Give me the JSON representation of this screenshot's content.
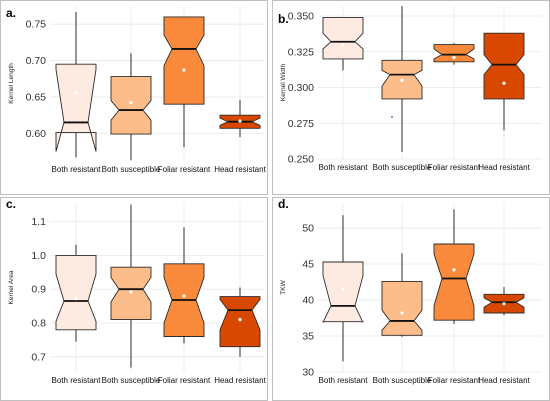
{
  "colors": {
    "fills": [
      "#fdebe1",
      "#fdbd8a",
      "#f98a3c",
      "#d94801"
    ],
    "border": "#2b2b2b",
    "median": "#111111",
    "mean_point": "#ffffff",
    "grid": "#e8e8e8"
  },
  "chart_data": [
    {
      "panel_label": "a.",
      "type": "box",
      "ylabel": "Kernel Length",
      "ylim": [
        0.562,
        0.775
      ],
      "yticks": [
        0.6,
        0.65,
        0.7,
        0.75
      ],
      "ytick_labels": [
        "0.60",
        "0.65",
        "0.70",
        "0.75"
      ],
      "grid": true,
      "categories": [
        "Both resistant",
        "Both susceptible",
        "Foliar resistant",
        "Head resistant"
      ],
      "boxes": [
        {
          "min": 0.567,
          "q1": 0.601,
          "median": 0.615,
          "q3": 0.695,
          "max": 0.767,
          "notch_low": 0.575,
          "notch_high": 0.688,
          "mean": 0.656
        },
        {
          "min": 0.563,
          "q1": 0.599,
          "median": 0.632,
          "q3": 0.678,
          "max": 0.71,
          "notch_low": 0.618,
          "notch_high": 0.645,
          "mean": 0.642
        },
        {
          "min": 0.581,
          "q1": 0.64,
          "median": 0.716,
          "q3": 0.76,
          "max": 0.76,
          "notch_low": 0.693,
          "notch_high": 0.735,
          "mean": 0.687
        },
        {
          "min": 0.595,
          "q1": 0.607,
          "median": 0.616,
          "q3": 0.625,
          "max": 0.646,
          "notch_low": 0.611,
          "notch_high": 0.621,
          "mean": 0.617
        }
      ]
    },
    {
      "panel_label": "b.",
      "type": "box",
      "ylabel": "Kernel Width",
      "ylim": [
        0.25,
        0.357
      ],
      "yticks": [
        0.25,
        0.275,
        0.3,
        0.325,
        0.35
      ],
      "ytick_labels": [
        "0.250",
        "0.275",
        "0.300",
        "0.325",
        "0.350"
      ],
      "grid": true,
      "categories": [
        "Both resistant",
        "Both susceptible",
        "Foliar resistant",
        "Head resistant"
      ],
      "boxes": [
        {
          "min": 0.312,
          "q1": 0.32,
          "median": 0.332,
          "q3": 0.349,
          "max": 0.349,
          "notch_low": 0.327,
          "notch_high": 0.338,
          "mean": 0.33
        },
        {
          "min": 0.255,
          "q1": 0.292,
          "median": 0.309,
          "q3": 0.319,
          "max": 0.357,
          "notch_low": 0.301,
          "notch_high": 0.312,
          "mean": 0.305
        },
        {
          "min": 0.316,
          "q1": 0.318,
          "median": 0.323,
          "q3": 0.33,
          "max": 0.331,
          "notch_low": 0.32,
          "notch_high": 0.327,
          "mean": 0.321
        },
        {
          "min": 0.27,
          "q1": 0.292,
          "median": 0.316,
          "q3": 0.338,
          "max": 0.338,
          "notch_low": 0.309,
          "notch_high": 0.323,
          "mean": 0.303
        }
      ]
    },
    {
      "panel_label": "c.",
      "type": "box",
      "ylabel": "Kernel Area",
      "ylim": [
        0.655,
        1.155
      ],
      "yticks": [
        0.7,
        0.8,
        0.9,
        1.0,
        1.1
      ],
      "ytick_labels": [
        "0.7",
        "0.8",
        "0.9",
        "1.0",
        "1.1"
      ],
      "grid": true,
      "categories": [
        "Both resistant",
        "Both susceptible",
        "Foliar resistant",
        "Head resistant"
      ],
      "boxes": [
        {
          "min": 0.745,
          "q1": 0.78,
          "median": 0.865,
          "q3": 1.0,
          "max": 1.032,
          "notch_low": 0.805,
          "notch_high": 0.945,
          "mean": 0.872
        },
        {
          "min": 0.668,
          "q1": 0.81,
          "median": 0.9,
          "q3": 0.965,
          "max": 1.15,
          "notch_low": 0.862,
          "notch_high": 0.935,
          "mean": 0.892
        },
        {
          "min": 0.74,
          "q1": 0.76,
          "median": 0.868,
          "q3": 0.975,
          "max": 1.083,
          "notch_low": 0.8,
          "notch_high": 0.935,
          "mean": 0.88
        },
        {
          "min": 0.7,
          "q1": 0.73,
          "median": 0.838,
          "q3": 0.878,
          "max": 0.905,
          "notch_low": 0.78,
          "notch_high": 0.87,
          "mean": 0.81
        }
      ]
    },
    {
      "panel_label": "d.",
      "type": "box",
      "ylabel": "TKW",
      "ylim": [
        30,
        53.5
      ],
      "yticks": [
        30,
        35,
        40,
        45,
        50
      ],
      "ytick_labels": [
        "30",
        "35",
        "40",
        "45",
        "50"
      ],
      "grid": true,
      "categories": [
        "Both resistant",
        "Both susceptible",
        "Foliar resistant",
        "Head resistant"
      ],
      "boxes": [
        {
          "min": 31.5,
          "q1": 37.0,
          "median": 39.2,
          "q3": 45.3,
          "max": 51.8,
          "notch_low": 36.9,
          "notch_high": 43.4,
          "mean": 41.5
        },
        {
          "min": 34.9,
          "q1": 35.1,
          "median": 37.1,
          "q3": 42.6,
          "max": 46.5,
          "notch_low": 35.8,
          "notch_high": 38.6,
          "mean": 38.2
        },
        {
          "min": 36.7,
          "q1": 37.2,
          "median": 43.0,
          "q3": 47.8,
          "max": 52.6,
          "notch_low": 39.2,
          "notch_high": 46.4,
          "mean": 44.2
        },
        {
          "min": 37.9,
          "q1": 38.2,
          "median": 39.7,
          "q3": 40.8,
          "max": 41.8,
          "notch_low": 39.0,
          "notch_high": 40.3,
          "mean": 39.5
        }
      ]
    }
  ]
}
